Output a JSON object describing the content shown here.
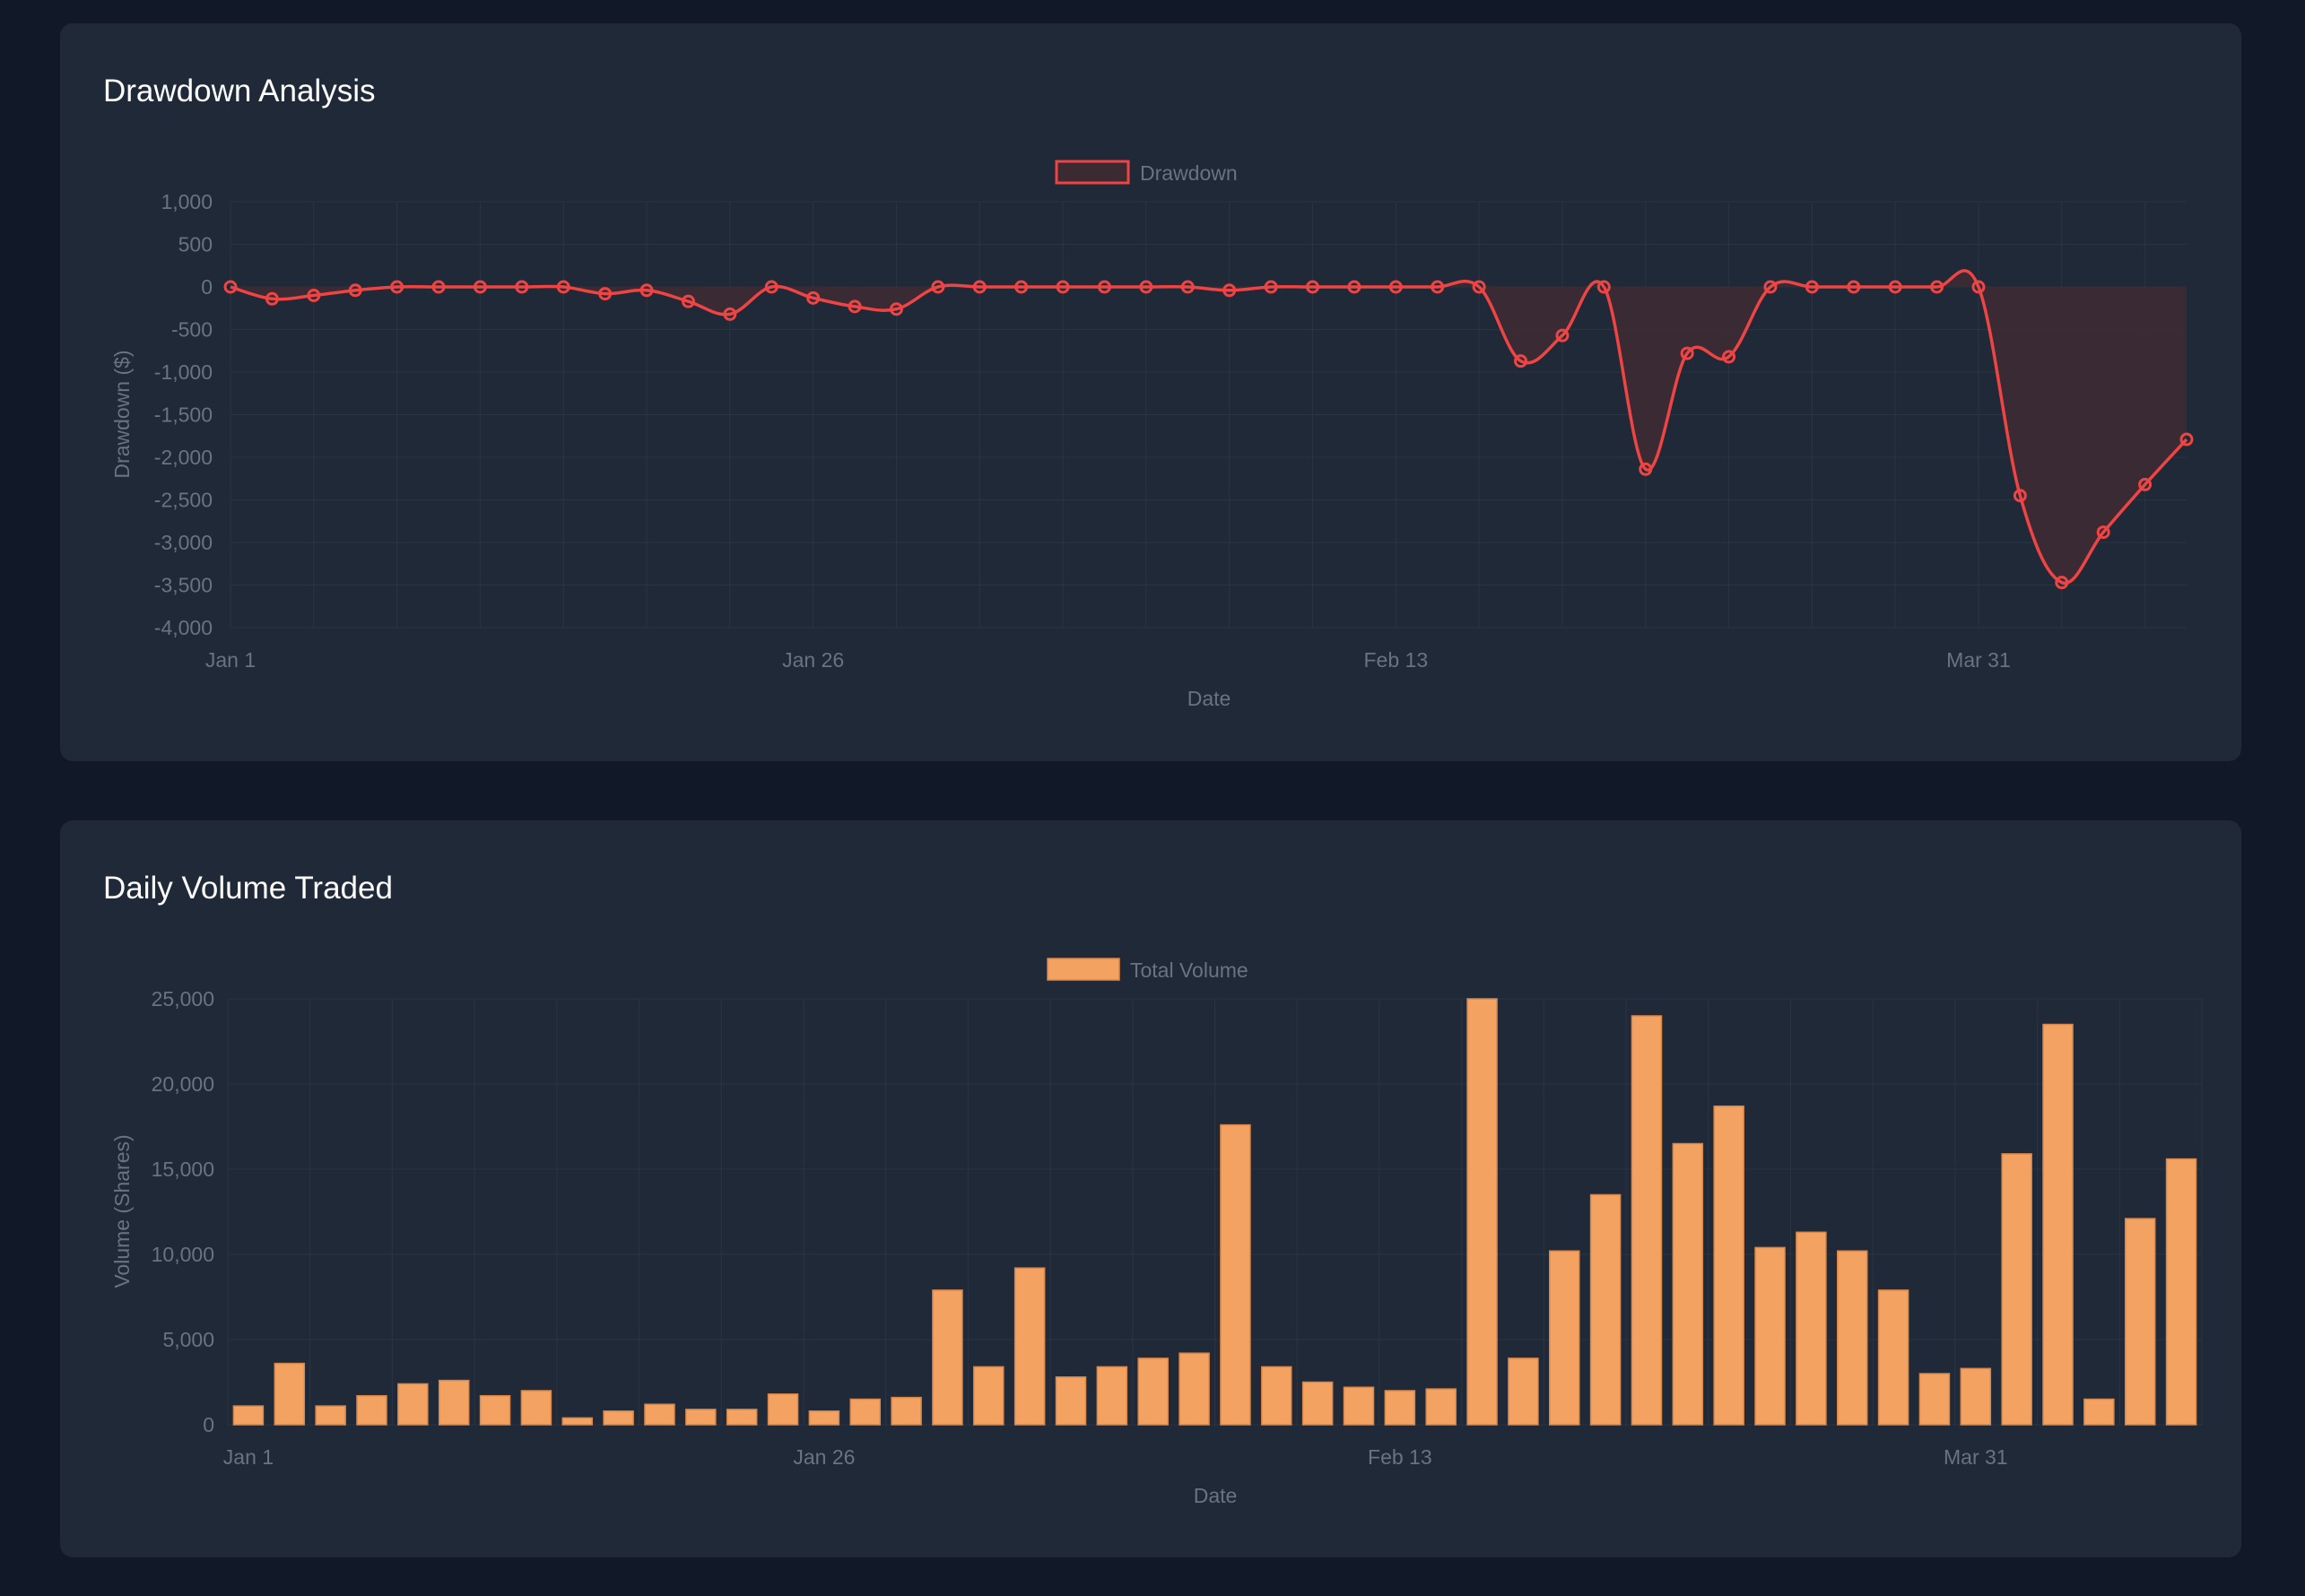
{
  "colors": {
    "page_bg": "#111827",
    "card_bg": "#1f2937",
    "title": "#ffffff",
    "axis_text": "#6b7280",
    "grid": "#2a3442",
    "drawdown_line": "#ef4444",
    "drawdown_fill": "#3c2a33",
    "volume_bar": "#f4a261",
    "volume_bar_border": "#d9874a"
  },
  "cards": {
    "drawdown": {
      "title": "Drawdown Analysis"
    },
    "volume": {
      "title": "Daily Volume Traded"
    }
  },
  "chart_data": [
    {
      "type": "area",
      "title": "Drawdown Analysis",
      "xlabel": "Date",
      "ylabel": "Drawdown ($)",
      "legend": {
        "label": "Drawdown",
        "position": "top"
      },
      "grid": true,
      "ylim": [
        -4000,
        1000
      ],
      "yticks": [
        "1,000",
        "500",
        "0",
        "-500",
        "-1,000",
        "-1,500",
        "-2,000",
        "-2,500",
        "-3,000",
        "-3,500",
        "-4,000"
      ],
      "xticks": [
        {
          "index": 0,
          "label": "Jan 1"
        },
        {
          "index": 14,
          "label": "Jan 26"
        },
        {
          "index": 28,
          "label": "Feb 13"
        },
        {
          "index": 42,
          "label": "Mar 31"
        }
      ],
      "series": [
        {
          "name": "Drawdown",
          "values": [
            0,
            -140,
            -100,
            -40,
            0,
            0,
            0,
            0,
            0,
            -80,
            -40,
            -170,
            -320,
            0,
            -130,
            -230,
            -260,
            0,
            0,
            0,
            0,
            0,
            0,
            0,
            -40,
            0,
            0,
            0,
            0,
            0,
            0,
            -870,
            -570,
            0,
            -2140,
            -780,
            -820,
            0,
            0,
            0,
            0,
            0,
            0,
            -2450,
            -3470,
            -2880,
            -2320,
            -1790
          ]
        }
      ]
    },
    {
      "type": "bar",
      "title": "Daily Volume Traded",
      "xlabel": "Date",
      "ylabel": "Volume (Shares)",
      "legend": {
        "label": "Total Volume",
        "position": "top"
      },
      "grid": true,
      "ylim": [
        0,
        25000
      ],
      "yticks": [
        "25,000",
        "20,000",
        "15,000",
        "10,000",
        "5,000",
        "0"
      ],
      "xticks": [
        {
          "index": 0,
          "label": "Jan 1"
        },
        {
          "index": 14,
          "label": "Jan 26"
        },
        {
          "index": 28,
          "label": "Feb 13"
        },
        {
          "index": 42,
          "label": "Mar 31"
        }
      ],
      "series": [
        {
          "name": "Total Volume",
          "values": [
            1100,
            3600,
            1100,
            1700,
            2400,
            2600,
            1700,
            2000,
            400,
            800,
            1200,
            900,
            900,
            1800,
            800,
            1500,
            1600,
            7900,
            3400,
            9200,
            2800,
            3400,
            3900,
            4200,
            17600,
            3400,
            2500,
            2200,
            2000,
            2100,
            25000,
            3900,
            10200,
            13500,
            24000,
            16500,
            18700,
            10400,
            11300,
            10200,
            7900,
            3000,
            3300,
            15900,
            23500,
            1500,
            12100,
            15600
          ]
        }
      ]
    }
  ]
}
